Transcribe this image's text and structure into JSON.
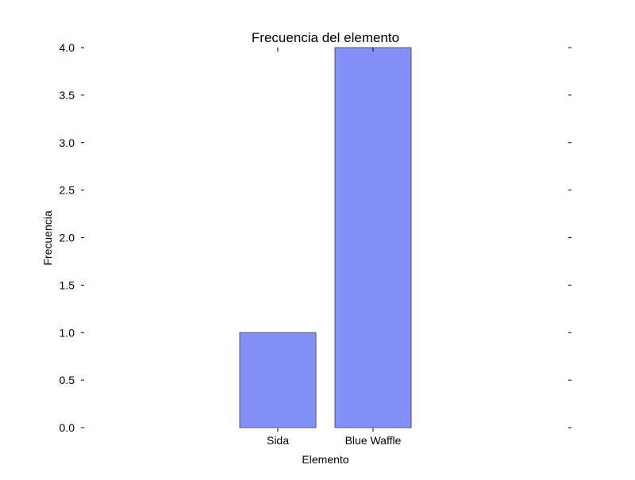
{
  "chart_data": {
    "type": "bar",
    "title": "Frecuencia del elemento",
    "xlabel": "Elemento",
    "ylabel": "Frecuencia",
    "categories": [
      "Sida",
      "Blue Waffle"
    ],
    "values": [
      1,
      4
    ],
    "ylim": [
      0,
      4
    ],
    "yticks": [
      "0.0",
      "0.5",
      "1.0",
      "1.5",
      "2.0",
      "2.5",
      "3.0",
      "3.5",
      "4.0"
    ],
    "bar_color": "#8390f8",
    "grid": false,
    "legend": "none"
  }
}
